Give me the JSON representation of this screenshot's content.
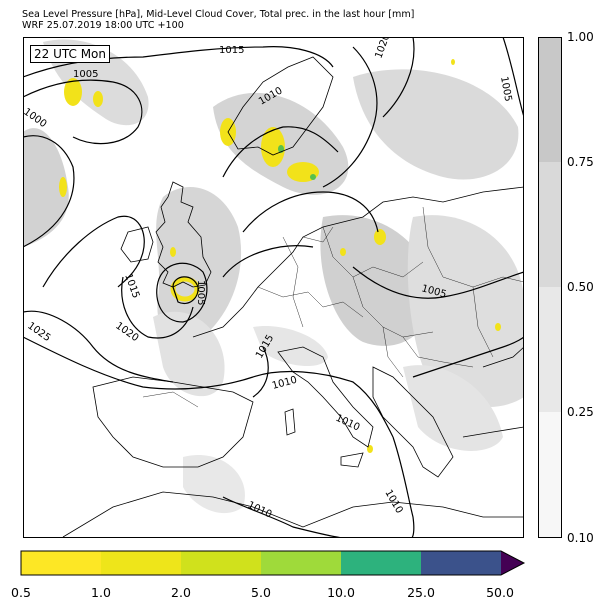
{
  "header": {
    "line1": "Sea Level Pressure [hPa], Mid-Level Cloud Cover, Total prec. in the last hour [mm]",
    "line2": "WRF 25.07.2019 18:00 UTC +100"
  },
  "map": {
    "time_badge": "22 UTC Mon",
    "isobar_labels": [
      "1015",
      "1020",
      "1005",
      "1005",
      "1010",
      "1000",
      "1015",
      "1005",
      "1025",
      "1020",
      "1005",
      "1015",
      "1010",
      "1010",
      "1010",
      "1010"
    ],
    "colors": {
      "cloud_light": "#e8e8e8",
      "cloud_medium": "#d9d9d9",
      "cloud_dark": "#c8c8c8",
      "precip_yellow": "#f2e21a",
      "precip_green": "#58c04c"
    }
  },
  "cloud_legend": {
    "ticks": [
      "1.00",
      "0.75",
      "0.50",
      "0.25",
      "0.10"
    ],
    "colors": [
      "#c8c8c8",
      "#d9d9d9",
      "#e8e8e8",
      "#f7f7f7"
    ]
  },
  "precip_legend": {
    "ticks": [
      "0.5",
      "1.0",
      "2.0",
      "5.0",
      "10.0",
      "25.0",
      "50.0"
    ],
    "colors": [
      "#fde725",
      "#eee51a",
      "#d0e11c",
      "#9fda3a",
      "#2db27d",
      "#3b528b",
      "#440154"
    ]
  }
}
